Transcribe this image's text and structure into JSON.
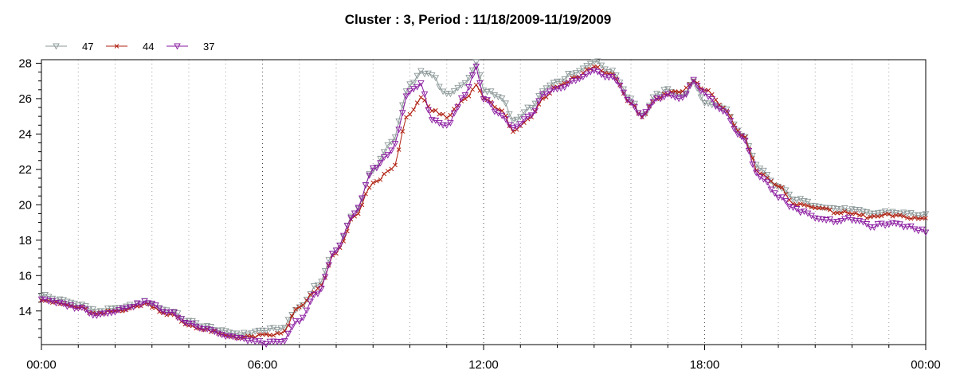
{
  "chart_data": {
    "type": "line",
    "title": "Cluster : 3, Period : 11/18/2009-11/19/2009",
    "xlabel": "",
    "ylabel": "",
    "x_ticks": [
      "00:00",
      "06:00",
      "12:00",
      "18:00",
      "00:00"
    ],
    "x_range_hours": [
      0,
      24
    ],
    "ylim": [
      12.1,
      28.2
    ],
    "y_ticks": [
      14,
      16,
      18,
      20,
      22,
      24,
      26,
      28
    ],
    "grid": "vertical dotted lines",
    "legend_position": "top-left",
    "series": [
      {
        "name": "47",
        "color": "#8c9898",
        "marker": "triangle-down",
        "points": [
          [
            0,
            14.9
          ],
          [
            0.5,
            14.6
          ],
          [
            1,
            14.4
          ],
          [
            1.5,
            14.0
          ],
          [
            2,
            14.1
          ],
          [
            2.5,
            14.3
          ],
          [
            2.8,
            14.5
          ],
          [
            3.5,
            14.0
          ],
          [
            4,
            13.4
          ],
          [
            4.5,
            13.1
          ],
          [
            5,
            12.8
          ],
          [
            5.5,
            12.7
          ],
          [
            6,
            12.9
          ],
          [
            6.5,
            13.0
          ],
          [
            7,
            14.2
          ],
          [
            7.5,
            15.5
          ],
          [
            8,
            17.5
          ],
          [
            8.5,
            19.5
          ],
          [
            9,
            22.0
          ],
          [
            9.5,
            23.5
          ],
          [
            10,
            26.8
          ],
          [
            10.3,
            27.5
          ],
          [
            10.6,
            27.3
          ],
          [
            11,
            26.2
          ],
          [
            11.5,
            26.8
          ],
          [
            11.8,
            28.0
          ],
          [
            12,
            26.5
          ],
          [
            12.5,
            26.0
          ],
          [
            12.8,
            24.8
          ],
          [
            13.3,
            25.5
          ],
          [
            13.6,
            26.5
          ],
          [
            14,
            27.0
          ],
          [
            14.5,
            27.5
          ],
          [
            15,
            28.1
          ],
          [
            15.5,
            27.5
          ],
          [
            16,
            26.0
          ],
          [
            16.3,
            25.0
          ],
          [
            16.7,
            26.2
          ],
          [
            17,
            26.5
          ],
          [
            17.4,
            26.2
          ],
          [
            17.7,
            26.9
          ],
          [
            18,
            25.8
          ],
          [
            18.5,
            25.5
          ],
          [
            19,
            24.0
          ],
          [
            19.5,
            22.0
          ],
          [
            20,
            21.0
          ],
          [
            20.5,
            20.3
          ],
          [
            21,
            20.0
          ],
          [
            21.5,
            19.8
          ],
          [
            22,
            19.7
          ],
          [
            22.5,
            19.5
          ],
          [
            23,
            19.6
          ],
          [
            23.5,
            19.5
          ],
          [
            24,
            19.4
          ]
        ]
      },
      {
        "name": "44",
        "color": "#b02010",
        "marker": "x",
        "points": [
          [
            0,
            14.7
          ],
          [
            0.5,
            14.4
          ],
          [
            1,
            14.2
          ],
          [
            1.5,
            13.8
          ],
          [
            2,
            14.0
          ],
          [
            2.5,
            14.2
          ],
          [
            2.8,
            14.4
          ],
          [
            3.5,
            13.8
          ],
          [
            4,
            13.2
          ],
          [
            4.5,
            12.9
          ],
          [
            5,
            12.6
          ],
          [
            5.5,
            12.5
          ],
          [
            6,
            12.6
          ],
          [
            6.5,
            12.7
          ],
          [
            7,
            14.2
          ],
          [
            7.5,
            15.2
          ],
          [
            8,
            17.3
          ],
          [
            8.5,
            19.3
          ],
          [
            9,
            21.2
          ],
          [
            9.5,
            22.0
          ],
          [
            10,
            25.2
          ],
          [
            10.3,
            26.0
          ],
          [
            10.6,
            25.3
          ],
          [
            11,
            25.0
          ],
          [
            11.5,
            26.0
          ],
          [
            11.8,
            26.8
          ],
          [
            12,
            26.0
          ],
          [
            12.5,
            25.3
          ],
          [
            12.8,
            24.2
          ],
          [
            13.3,
            25.0
          ],
          [
            13.6,
            26.0
          ],
          [
            14,
            26.7
          ],
          [
            14.5,
            27.2
          ],
          [
            15,
            27.8
          ],
          [
            15.5,
            27.3
          ],
          [
            16,
            25.7
          ],
          [
            16.3,
            25.0
          ],
          [
            16.7,
            26.0
          ],
          [
            17,
            26.3
          ],
          [
            17.4,
            26.4
          ],
          [
            17.7,
            27.0
          ],
          [
            18,
            26.5
          ],
          [
            18.5,
            25.5
          ],
          [
            19,
            24.0
          ],
          [
            19.5,
            21.8
          ],
          [
            20,
            21.0
          ],
          [
            20.5,
            20.0
          ],
          [
            21,
            19.9
          ],
          [
            21.5,
            19.6
          ],
          [
            22,
            19.5
          ],
          [
            22.5,
            19.3
          ],
          [
            23,
            19.4
          ],
          [
            23.5,
            19.3
          ],
          [
            24,
            19.2
          ]
        ]
      },
      {
        "name": "37",
        "color": "#8a1aa0",
        "marker": "triangle-down",
        "points": [
          [
            0,
            14.7
          ],
          [
            0.5,
            14.4
          ],
          [
            1,
            14.2
          ],
          [
            1.5,
            13.8
          ],
          [
            2,
            14.0
          ],
          [
            2.5,
            14.3
          ],
          [
            2.8,
            14.5
          ],
          [
            3.5,
            13.9
          ],
          [
            4,
            13.3
          ],
          [
            4.5,
            13.0
          ],
          [
            5,
            12.6
          ],
          [
            5.5,
            12.4
          ],
          [
            6,
            12.2
          ],
          [
            6.5,
            12.2
          ],
          [
            7,
            13.5
          ],
          [
            7.5,
            15.0
          ],
          [
            8,
            17.5
          ],
          [
            8.5,
            19.5
          ],
          [
            9,
            22.0
          ],
          [
            9.5,
            23.0
          ],
          [
            10,
            26.5
          ],
          [
            10.3,
            26.8
          ],
          [
            10.6,
            24.8
          ],
          [
            11,
            24.5
          ],
          [
            11.5,
            26.2
          ],
          [
            11.8,
            27.8
          ],
          [
            12,
            26.0
          ],
          [
            12.5,
            25.0
          ],
          [
            12.8,
            24.3
          ],
          [
            13.3,
            25.0
          ],
          [
            13.6,
            26.2
          ],
          [
            14,
            26.5
          ],
          [
            14.5,
            27.0
          ],
          [
            15,
            27.5
          ],
          [
            15.5,
            27.2
          ],
          [
            16,
            25.8
          ],
          [
            16.3,
            25.0
          ],
          [
            16.7,
            26.0
          ],
          [
            17,
            26.2
          ],
          [
            17.4,
            26.0
          ],
          [
            17.7,
            27.0
          ],
          [
            18,
            26.3
          ],
          [
            18.5,
            25.3
          ],
          [
            19,
            23.8
          ],
          [
            19.5,
            21.6
          ],
          [
            20,
            20.5
          ],
          [
            20.5,
            19.7
          ],
          [
            21,
            19.3
          ],
          [
            21.5,
            19.1
          ],
          [
            22,
            19.2
          ],
          [
            22.5,
            18.8
          ],
          [
            23,
            18.9
          ],
          [
            23.5,
            18.8
          ],
          [
            24,
            18.5
          ]
        ]
      }
    ]
  }
}
